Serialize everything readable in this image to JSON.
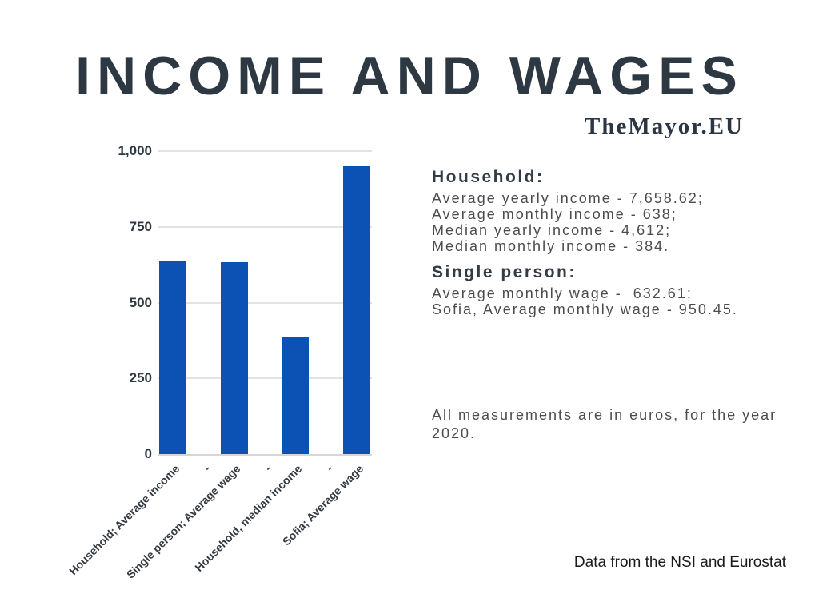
{
  "header": {
    "title": "INCOME AND WAGES",
    "brand": "TheMayor.EU"
  },
  "chart_data": {
    "type": "bar",
    "title": "INCOME AND WAGES",
    "categories": [
      "Household; Average income",
      "-",
      "Single person; Average wage",
      "-",
      "Household, median income",
      "-",
      "Sofia; Average wage"
    ],
    "values": [
      638,
      null,
      632.61,
      null,
      384,
      null,
      950.45
    ],
    "xlabel": "",
    "ylabel": "",
    "ylim": [
      0,
      1000
    ],
    "yticks": [
      0,
      250,
      500,
      750,
      1000
    ],
    "ytick_labels": [
      "0",
      "250",
      "500",
      "750",
      "1,000"
    ],
    "grid": true,
    "legend_position": "none",
    "bar_color": "#0b52b4",
    "gridline_color": "#e3e3e3"
  },
  "panel": {
    "household_heading": "Household:",
    "household_lines": [
      "Average yearly income - 7,658.62;",
      "Average monthly income - 638;",
      "Median yearly income - 4,612;",
      "Median monthly income - 384."
    ],
    "single_heading": "Single person:",
    "single_lines": [
      "Average monthly wage -  632.61;",
      "Sofia, Average monthly wage - 950.45."
    ],
    "note": "All measurements are in euros, for the year 2020."
  },
  "footer": {
    "source": "Data from the NSI and Eurostat"
  }
}
